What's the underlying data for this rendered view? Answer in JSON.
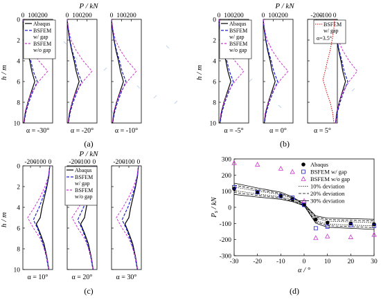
{
  "figure": {
    "panel_labels": [
      "(a)",
      "(b)",
      "(c)",
      "(d)"
    ],
    "top_x_label": "P / kN",
    "h_label": "h / m",
    "alpha_label_prefix": "α = "
  },
  "legends": {
    "abc": [
      "Abaqus",
      "BSFEM",
      "w/ gap",
      "BSFEM",
      "w/o gap"
    ],
    "b3": [
      "BSFEM",
      "w/ gap",
      "α=3.5°"
    ],
    "d": [
      "Abaqus",
      "BSFEM w/ gap",
      "BSFEM w/o gap",
      "10% deviation",
      "20% deviation",
      "30% deviation"
    ]
  },
  "colors": {
    "abaqus": "#000000",
    "bsfem_gap": "#1f1fcf",
    "bsfem_nogap": "#cc33cc",
    "alpha35": "#cc0000",
    "scatter_faint": "#b0c8e0"
  },
  "chart_data": [
    {
      "type": "line",
      "panel": "(a)",
      "subplots": [
        {
          "alpha": "-30°",
          "xticks": [
            "0",
            "100",
            "200"
          ],
          "xlim": [
            0,
            300
          ]
        },
        {
          "alpha": "-20°",
          "xticks": [
            "0",
            "100",
            "200"
          ],
          "xlim": [
            0,
            300
          ]
        },
        {
          "alpha": "-10°",
          "xticks": [
            "0",
            "100",
            "200"
          ],
          "xlim": [
            0,
            300
          ]
        }
      ],
      "ylim": [
        10,
        0
      ],
      "yticks": [
        "0",
        "2",
        "4",
        "6",
        "8",
        "10"
      ],
      "series": [
        {
          "name": "Abaqus",
          "points": [
            [
              0,
              0
            ],
            [
              10,
              1
            ],
            [
              25,
              2
            ],
            [
              45,
              3
            ],
            [
              70,
              4
            ],
            [
              90,
              5
            ],
            [
              120,
              6
            ],
            [
              85,
              7
            ],
            [
              50,
              8
            ],
            [
              25,
              9
            ],
            [
              10,
              10
            ]
          ]
        },
        {
          "name": "BSFEM w/ gap",
          "points": [
            [
              0,
              0
            ],
            [
              12,
              1
            ],
            [
              28,
              2
            ],
            [
              50,
              3
            ],
            [
              80,
              4
            ],
            [
              105,
              5
            ],
            [
              145,
              6
            ],
            [
              100,
              7
            ],
            [
              60,
              8
            ],
            [
              30,
              9
            ],
            [
              12,
              10
            ]
          ]
        },
        {
          "name": "BSFEM w/o gap",
          "points": [
            [
              0,
              0
            ],
            [
              15,
              1
            ],
            [
              40,
              2
            ],
            [
              90,
              3
            ],
            [
              160,
              4
            ],
            [
              250,
              5
            ],
            [
              160,
              6
            ],
            [
              90,
              7
            ],
            [
              50,
              8
            ],
            [
              20,
              9
            ],
            [
              8,
              10
            ]
          ]
        }
      ]
    },
    {
      "type": "line",
      "panel": "(b)",
      "subplots": [
        {
          "alpha": "-5°",
          "xticks": [
            "0",
            "100",
            "200"
          ],
          "xlim": [
            0,
            300
          ]
        },
        {
          "alpha": "0°",
          "xticks": [
            "0",
            "100",
            "200"
          ],
          "xlim": [
            0,
            300
          ]
        },
        {
          "alpha": "5°",
          "xticks": [
            "-200",
            "-100",
            "0"
          ],
          "xlim": [
            -300,
            30
          ]
        }
      ],
      "ylim": [
        10,
        0
      ],
      "yticks": [
        "0",
        "2",
        "4",
        "6",
        "8",
        "10"
      ],
      "series": [
        {
          "name": "Abaqus",
          "points": [
            [
              0,
              0
            ],
            [
              10,
              1
            ],
            [
              25,
              2
            ],
            [
              45,
              3
            ],
            [
              70,
              4
            ],
            [
              90,
              5
            ],
            [
              120,
              6
            ],
            [
              85,
              7
            ],
            [
              50,
              8
            ],
            [
              25,
              9
            ],
            [
              10,
              10
            ]
          ]
        },
        {
          "name": "BSFEM w/ gap",
          "points": [
            [
              0,
              0
            ],
            [
              12,
              1
            ],
            [
              28,
              2
            ],
            [
              50,
              3
            ],
            [
              80,
              4
            ],
            [
              105,
              5
            ],
            [
              145,
              6
            ],
            [
              100,
              7
            ],
            [
              60,
              8
            ],
            [
              30,
              9
            ],
            [
              12,
              10
            ]
          ]
        },
        {
          "name": "BSFEM w/o gap",
          "points": [
            [
              0,
              0
            ],
            [
              15,
              1
            ],
            [
              40,
              2
            ],
            [
              90,
              3
            ],
            [
              160,
              4
            ],
            [
              250,
              5
            ],
            [
              160,
              6
            ],
            [
              90,
              7
            ],
            [
              50,
              8
            ],
            [
              20,
              9
            ],
            [
              8,
              10
            ]
          ]
        }
      ]
    },
    {
      "type": "line",
      "panel": "(c)",
      "subplots": [
        {
          "alpha": "10°",
          "xticks": [
            "-200",
            "-100",
            "0"
          ],
          "xlim": [
            -280,
            30
          ]
        },
        {
          "alpha": "20°",
          "xticks": [
            "-200",
            "-100",
            "0"
          ],
          "xlim": [
            -280,
            30
          ]
        },
        {
          "alpha": "30°",
          "xticks": [
            "-200",
            "-100",
            "0"
          ],
          "xlim": [
            -280,
            30
          ]
        }
      ],
      "ylim": [
        10,
        0
      ],
      "yticks": [
        "0",
        "2",
        "4",
        "6",
        "8",
        "10"
      ],
      "series": [
        {
          "name": "Abaqus",
          "points": [
            [
              0,
              0
            ],
            [
              -10,
              1
            ],
            [
              -30,
              2
            ],
            [
              -55,
              3
            ],
            [
              -80,
              4
            ],
            [
              -100,
              5
            ],
            [
              -140,
              5.6
            ],
            [
              -100,
              6.5
            ],
            [
              -60,
              7.5
            ],
            [
              -30,
              8.8
            ],
            [
              -10,
              10
            ]
          ]
        },
        {
          "name": "BSFEM w/ gap",
          "points": [
            [
              0,
              0
            ],
            [
              -12,
              1
            ],
            [
              -35,
              2
            ],
            [
              -70,
              3
            ],
            [
              -110,
              4
            ],
            [
              -150,
              4.8
            ],
            [
              -170,
              5.2
            ],
            [
              -120,
              6.2
            ],
            [
              -70,
              7.5
            ],
            [
              -35,
              8.8
            ],
            [
              -12,
              10
            ]
          ]
        },
        {
          "name": "BSFEM w/o gap",
          "points": [
            [
              0,
              0
            ],
            [
              -15,
              1
            ],
            [
              -50,
              2
            ],
            [
              -100,
              3
            ],
            [
              -160,
              4
            ],
            [
              -230,
              5
            ],
            [
              -170,
              6
            ],
            [
              -100,
              7
            ],
            [
              -55,
              8
            ],
            [
              -25,
              9
            ],
            [
              -8,
              10
            ]
          ]
        }
      ]
    },
    {
      "type": "scatter",
      "panel": "(d)",
      "xlabel": "α / °",
      "ylabel": "P_s / kN",
      "xlim": [
        -30,
        30
      ],
      "ylim": [
        -300,
        300
      ],
      "xticks": [
        "-30",
        "-20",
        "-10",
        "0",
        "10",
        "20",
        "30"
      ],
      "yticks": [
        "300",
        "200",
        "100",
        "0",
        "-100",
        "-200",
        "-300"
      ],
      "series": [
        {
          "name": "Abaqus",
          "x": [
            -30,
            -20,
            -10,
            -5,
            0,
            5,
            10,
            20,
            30
          ],
          "y": [
            115,
            92,
            72,
            50,
            15,
            -75,
            -95,
            -100,
            -105
          ]
        },
        {
          "name": "BSFEM w/ gap",
          "x": [
            -30,
            -20,
            -10,
            -5,
            0,
            5,
            10,
            20,
            30
          ],
          "y": [
            125,
            95,
            70,
            60,
            15,
            -130,
            -120,
            -110,
            -115
          ]
        },
        {
          "name": "BSFEM w/o gap",
          "x": [
            -30,
            -20,
            -10,
            -5,
            0,
            5,
            10,
            20,
            30
          ],
          "y": [
            275,
            265,
            240,
            220,
            40,
            -190,
            -180,
            -185,
            -170
          ]
        },
        {
          "name": "10% deviation",
          "x": [
            -30,
            -20,
            -10,
            -5,
            0,
            5,
            10,
            20,
            30
          ],
          "y_upper": [
            126,
            101,
            79,
            55,
            16,
            -68,
            -86,
            -90,
            -95
          ],
          "y_lower": [
            104,
            83,
            65,
            45,
            14,
            -82,
            -104,
            -110,
            -115
          ]
        },
        {
          "name": "20% deviation",
          "x": [
            -30,
            -20,
            -10,
            -5,
            0,
            5,
            10,
            20,
            30
          ],
          "y_upper": [
            138,
            110,
            86,
            60,
            18,
            -60,
            -76,
            -80,
            -84
          ],
          "y_lower": [
            92,
            74,
            58,
            40,
            12,
            -90,
            -114,
            -120,
            -126
          ]
        },
        {
          "name": "30% deviation",
          "x": [
            -30,
            -20,
            -10,
            -5,
            0,
            5,
            10,
            20,
            30
          ],
          "y_upper": [
            150,
            120,
            94,
            65,
            20,
            -53,
            -67,
            -70,
            -74
          ],
          "y_lower": [
            80,
            64,
            50,
            35,
            10,
            -98,
            -124,
            -130,
            -137
          ]
        }
      ]
    }
  ]
}
